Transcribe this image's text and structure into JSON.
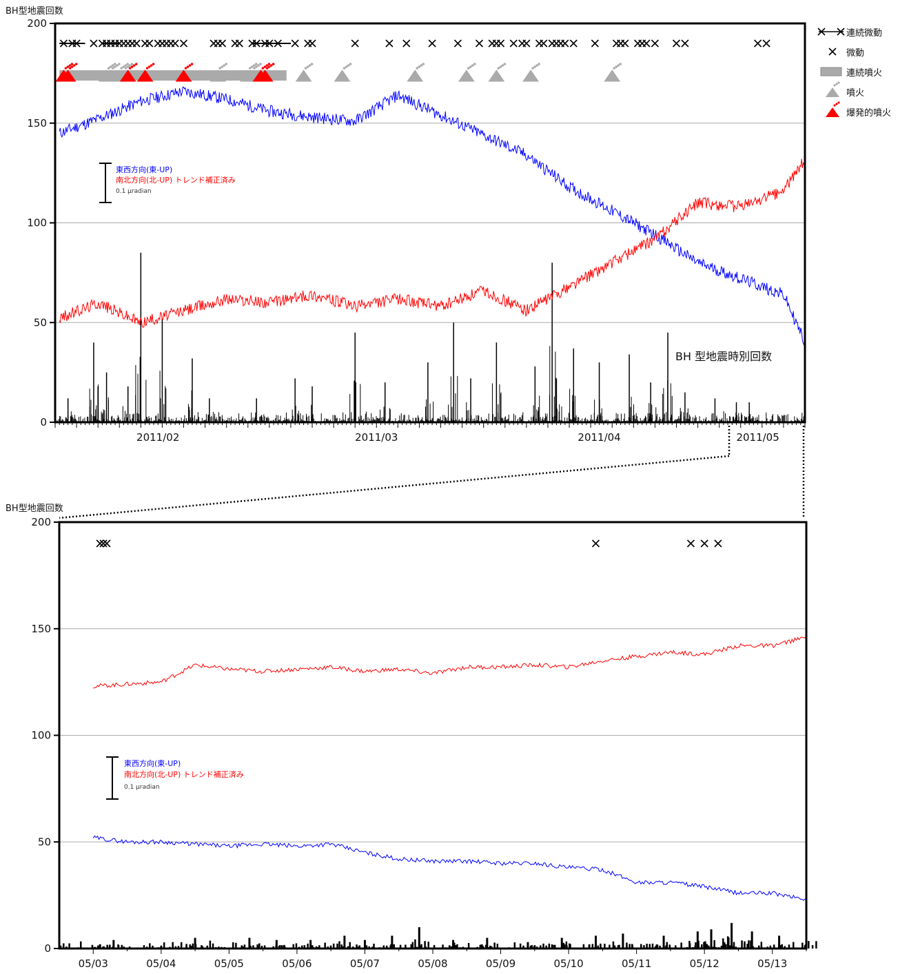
{
  "chart_data": [
    {
      "type": "line",
      "ylabel": "BH型地震回数",
      "ylim": [
        0,
        200
      ],
      "yticks": [
        "0",
        "50",
        "100",
        "150",
        "200"
      ],
      "xticks": [
        "2011/02",
        "2011/03",
        "2011/04",
        "2011/05"
      ],
      "grid": true,
      "legend_position": "outside-right",
      "legend": [
        {
          "label": "連続微動",
          "icon": "cross-line-icon"
        },
        {
          "label": "微動",
          "icon": "cross-icon"
        },
        {
          "label": "連続噴火",
          "icon": "gray-bar-icon"
        },
        {
          "label": "噴火",
          "icon": "gray-volcano-icon"
        },
        {
          "label": "爆発的噴火",
          "icon": "red-volcano-icon"
        }
      ],
      "scale_bar": {
        "line1": "東西方向(東-UP)",
        "line2": "南北方向(北-UP) トレンド補正済み",
        "line3": "0.1 μradian"
      },
      "annotation": "BH 型地震時別回数",
      "series": [
        {
          "name": "東西方向(東-UP)",
          "color": "#0000ff",
          "x": [
            1,
            10,
            20,
            30,
            40,
            50,
            60,
            70,
            80,
            90,
            100,
            110,
            120,
            130,
            140,
            150,
            160,
            170,
            175
          ],
          "y": [
            145,
            152,
            161,
            166,
            162,
            156,
            153,
            151,
            164,
            154,
            144,
            134,
            118,
            106,
            94,
            80,
            72,
            64,
            40
          ]
        },
        {
          "name": "南北方向(北-UP) トレンド補正済み",
          "color": "#ff0000",
          "x": [
            1,
            10,
            20,
            30,
            40,
            50,
            60,
            70,
            80,
            90,
            100,
            110,
            120,
            130,
            140,
            150,
            160,
            170,
            175
          ],
          "y": [
            52,
            60,
            50,
            56,
            62,
            60,
            64,
            58,
            62,
            58,
            66,
            56,
            68,
            80,
            92,
            110,
            108,
            116,
            132
          ]
        },
        {
          "name": "BH 型地震時別回数",
          "color": "#000000",
          "x": [
            3,
            9,
            10,
            12,
            17,
            20,
            25,
            32,
            36,
            47,
            56,
            60,
            70,
            77,
            87,
            93,
            97,
            103,
            112,
            116,
            117,
            121,
            127,
            134,
            139,
            143,
            147,
            154,
            159,
            162
          ],
          "y": [
            12,
            40,
            18,
            25,
            18,
            85,
            52,
            32,
            12,
            12,
            22,
            18,
            45,
            20,
            30,
            50,
            22,
            40,
            28,
            80,
            22,
            37,
            30,
            34,
            20,
            45,
            15,
            12,
            10,
            10
          ]
        }
      ],
      "events": {
        "continuous_tremor_days": [
          [
            1,
            7
          ],
          [
            11,
            15
          ],
          [
            46,
            55
          ]
        ],
        "tremor_days": [
          2,
          4,
          5,
          9,
          11,
          12,
          13,
          14,
          15,
          16,
          17,
          18,
          19,
          21,
          22,
          24,
          25,
          26,
          27,
          28,
          30,
          37,
          38,
          39,
          42,
          43,
          46,
          47,
          49,
          50,
          52,
          56,
          59,
          60,
          70,
          78,
          82,
          88,
          94,
          99,
          102,
          103,
          104,
          107,
          109,
          110,
          113,
          114,
          116,
          117,
          118,
          119,
          121,
          126,
          131,
          132,
          133,
          136,
          137,
          138,
          140,
          145,
          147,
          164,
          166
        ],
        "continuous_eruption_days": [
          [
            1,
            54
          ]
        ],
        "eruption_days": [
          12,
          13,
          15,
          16,
          38,
          45,
          46,
          49,
          58,
          67,
          84,
          96,
          103,
          111,
          130
        ],
        "explosive_eruption_days": [
          2,
          3,
          17,
          21,
          30,
          48,
          49
        ]
      }
    },
    {
      "type": "line",
      "ylabel": "BH型地震回数",
      "ylim": [
        0,
        200
      ],
      "yticks": [
        "0",
        "50",
        "100",
        "150",
        "200"
      ],
      "xticks": [
        "05/03",
        "05/04",
        "05/05",
        "05/06",
        "05/07",
        "05/08",
        "05/09",
        "05/10",
        "05/11",
        "05/12",
        "05/13"
      ],
      "grid": true,
      "scale_bar": {
        "line1": "東西方向(東-UP)",
        "line2": "南北方向(北-UP) トレンド補正済み",
        "line3": "0.1 μradian"
      },
      "series": [
        {
          "name": "東西方向(東-UP)",
          "color": "#0000ff",
          "x": [
            0,
            0.5,
            1,
            1.5,
            2,
            2.5,
            3,
            3.5,
            4,
            4.5,
            5,
            5.5,
            6,
            6.5,
            7,
            7.5,
            8,
            8.5,
            9,
            9.5,
            10,
            10.5
          ],
          "y": [
            52,
            50,
            50,
            49,
            48,
            49,
            48,
            49,
            45,
            42,
            41,
            41,
            40,
            40,
            38,
            37,
            31,
            31,
            29,
            26,
            26,
            23
          ]
        },
        {
          "name": "南北方向(北-UP) トレンド補正済み",
          "color": "#ff0000",
          "x": [
            0,
            0.5,
            1,
            1.5,
            2,
            2.5,
            3,
            3.5,
            4,
            4.5,
            5,
            5.5,
            6,
            6.5,
            7,
            7.5,
            8,
            8.5,
            9,
            9.5,
            10,
            10.5
          ],
          "y": [
            123,
            124,
            125,
            133,
            131,
            130,
            131,
            132,
            130,
            131,
            129,
            132,
            132,
            133,
            132,
            135,
            137,
            139,
            138,
            142,
            142,
            146
          ]
        },
        {
          "name": "BH 型地震時別回数",
          "color": "#000000",
          "x": [
            0.1,
            0.3,
            1.0,
            1.5,
            2.3,
            2.7,
            3.2,
            3.7,
            4.0,
            4.4,
            4.8,
            5.3,
            5.8,
            6.4,
            6.9,
            7.4,
            7.8,
            8.4,
            8.9,
            9.1,
            9.4,
            9.7,
            10.1,
            10.5
          ],
          "y": [
            2,
            4,
            1,
            5,
            5,
            4,
            4,
            6,
            4,
            6,
            10,
            4,
            5,
            3,
            5,
            6,
            7,
            6,
            8,
            9,
            12,
            8,
            6,
            8
          ]
        }
      ],
      "events": {
        "tremor_days": [
          0.1,
          0.15,
          0.2,
          7.4,
          8.8,
          9.0,
          9.2
        ]
      }
    }
  ]
}
